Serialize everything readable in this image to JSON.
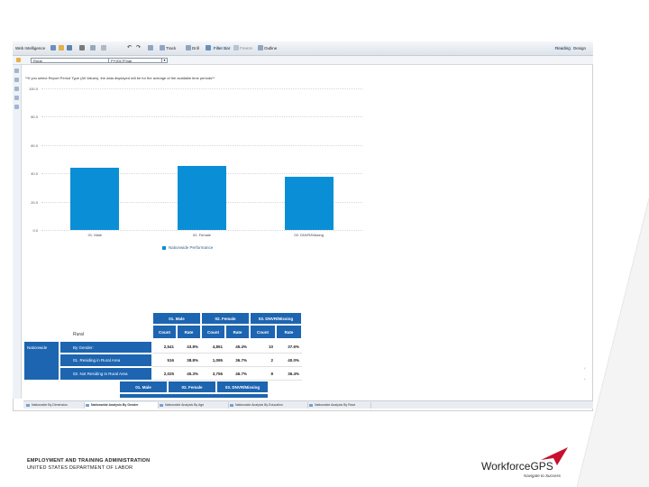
{
  "toolbar": {
    "app_label": "Web Intelligence",
    "track_label": "Track",
    "drill_label": "Drill",
    "filter_bar_label": "Filter Bar",
    "freeze_label": "Freeze",
    "outline_label": "Outline",
    "reading_label": "Reading",
    "design_label": "Design"
  },
  "filters": {
    "location_value": "Rural",
    "period_value": "PY2017Final"
  },
  "note": "**If you select Report Period Type (All Values), the data displayed will be for the average of the available time periods**",
  "chart_data": {
    "type": "bar",
    "categories": [
      "01. Male",
      "02. Female",
      "03. DNVR/Missing"
    ],
    "series": [
      {
        "name": "Nationwide Performance",
        "values": [
          43.8,
          45.4,
          37.6
        ]
      }
    ],
    "ylim": [
      0,
      100
    ],
    "yticks": [
      "100.0",
      "80.0",
      "60.0",
      "40.0",
      "20.0",
      "0.0"
    ],
    "ytick_values": [
      100,
      80,
      60,
      40,
      20,
      0
    ],
    "color": "#0a8fd6"
  },
  "table": {
    "title": "Rural",
    "groups": [
      "01. Male",
      "02. Female",
      "03. DNVR/Missing"
    ],
    "subheaders": [
      "Count",
      "Rate",
      "Count",
      "Rate",
      "Count",
      "Rate"
    ],
    "rows": [
      {
        "level1": "Nationwide",
        "level2": "By Gender:",
        "cells": [
          "2,541",
          "43.8%",
          "4,851",
          "45.4%",
          "10",
          "37.6%"
        ]
      },
      {
        "level1": "",
        "level2": "01. Residing in Rural Area",
        "cells": [
          "516",
          "38.8%",
          "1,095",
          "36.7%",
          "2",
          "40.0%"
        ]
      },
      {
        "level1": "",
        "level2": "02. Not Residing in Rural Area",
        "cells": [
          "2,025",
          "45.3%",
          "3,756",
          "46.7%",
          "8",
          "36.4%"
        ]
      }
    ],
    "repeat_groups": [
      "01. Male",
      "02. Female",
      "03. DNVR/Missing"
    ]
  },
  "tabs": [
    "Nationwide By Dimension",
    "Nationwide Analysis By Gender",
    "Nationwide Analysis By Age",
    "Nationwide Analysis By Education",
    "Nationwide Analysis By Race"
  ],
  "footer": {
    "line1": "EMPLOYMENT AND TRAINING ADMINISTRATION",
    "line2": "UNITED STATES DEPARTMENT OF LABOR",
    "logo_text": "WorkforceGPS",
    "logo_sub": "Navigate to Success"
  }
}
